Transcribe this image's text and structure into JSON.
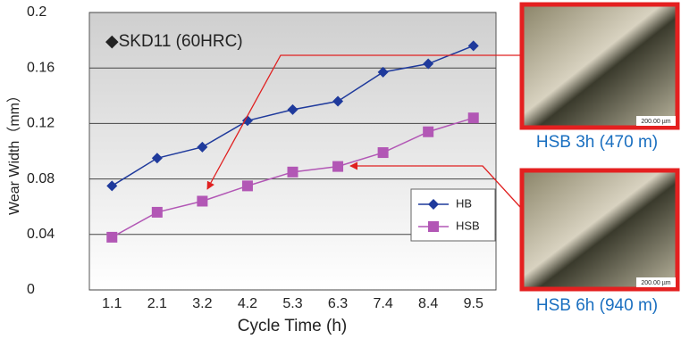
{
  "chart_data": {
    "type": "line",
    "annotation": "◆SKD11 (60HRC)",
    "x_label": "Cycle Time (h)",
    "y_label": "Wear Width（mm）",
    "categories": [
      "1.1",
      "2.1",
      "3.2",
      "4.2",
      "5.3",
      "6.3",
      "7.4",
      "8.4",
      "9.5"
    ],
    "series": [
      {
        "name": "HB",
        "color": "#1f3a9c",
        "marker": "diamond",
        "values": [
          0.075,
          0.095,
          0.103,
          0.122,
          0.13,
          0.136,
          0.157,
          0.163,
          0.176
        ]
      },
      {
        "name": "HSB",
        "color": "#b257b5",
        "marker": "square",
        "values": [
          0.038,
          0.056,
          0.064,
          0.075,
          0.085,
          0.089,
          0.099,
          0.114,
          0.124
        ]
      }
    ],
    "ylim": [
      0,
      0.2
    ],
    "yticks": [
      0,
      0.04,
      0.08,
      0.12,
      0.16,
      0.2
    ],
    "grid": true,
    "legend": "lower right",
    "images": [
      {
        "caption": "HSB 3h (470 m)",
        "scale": "200.00 µm"
      },
      {
        "caption": "HSB 6h (940 m)",
        "scale": "200.00 µm"
      }
    ]
  }
}
